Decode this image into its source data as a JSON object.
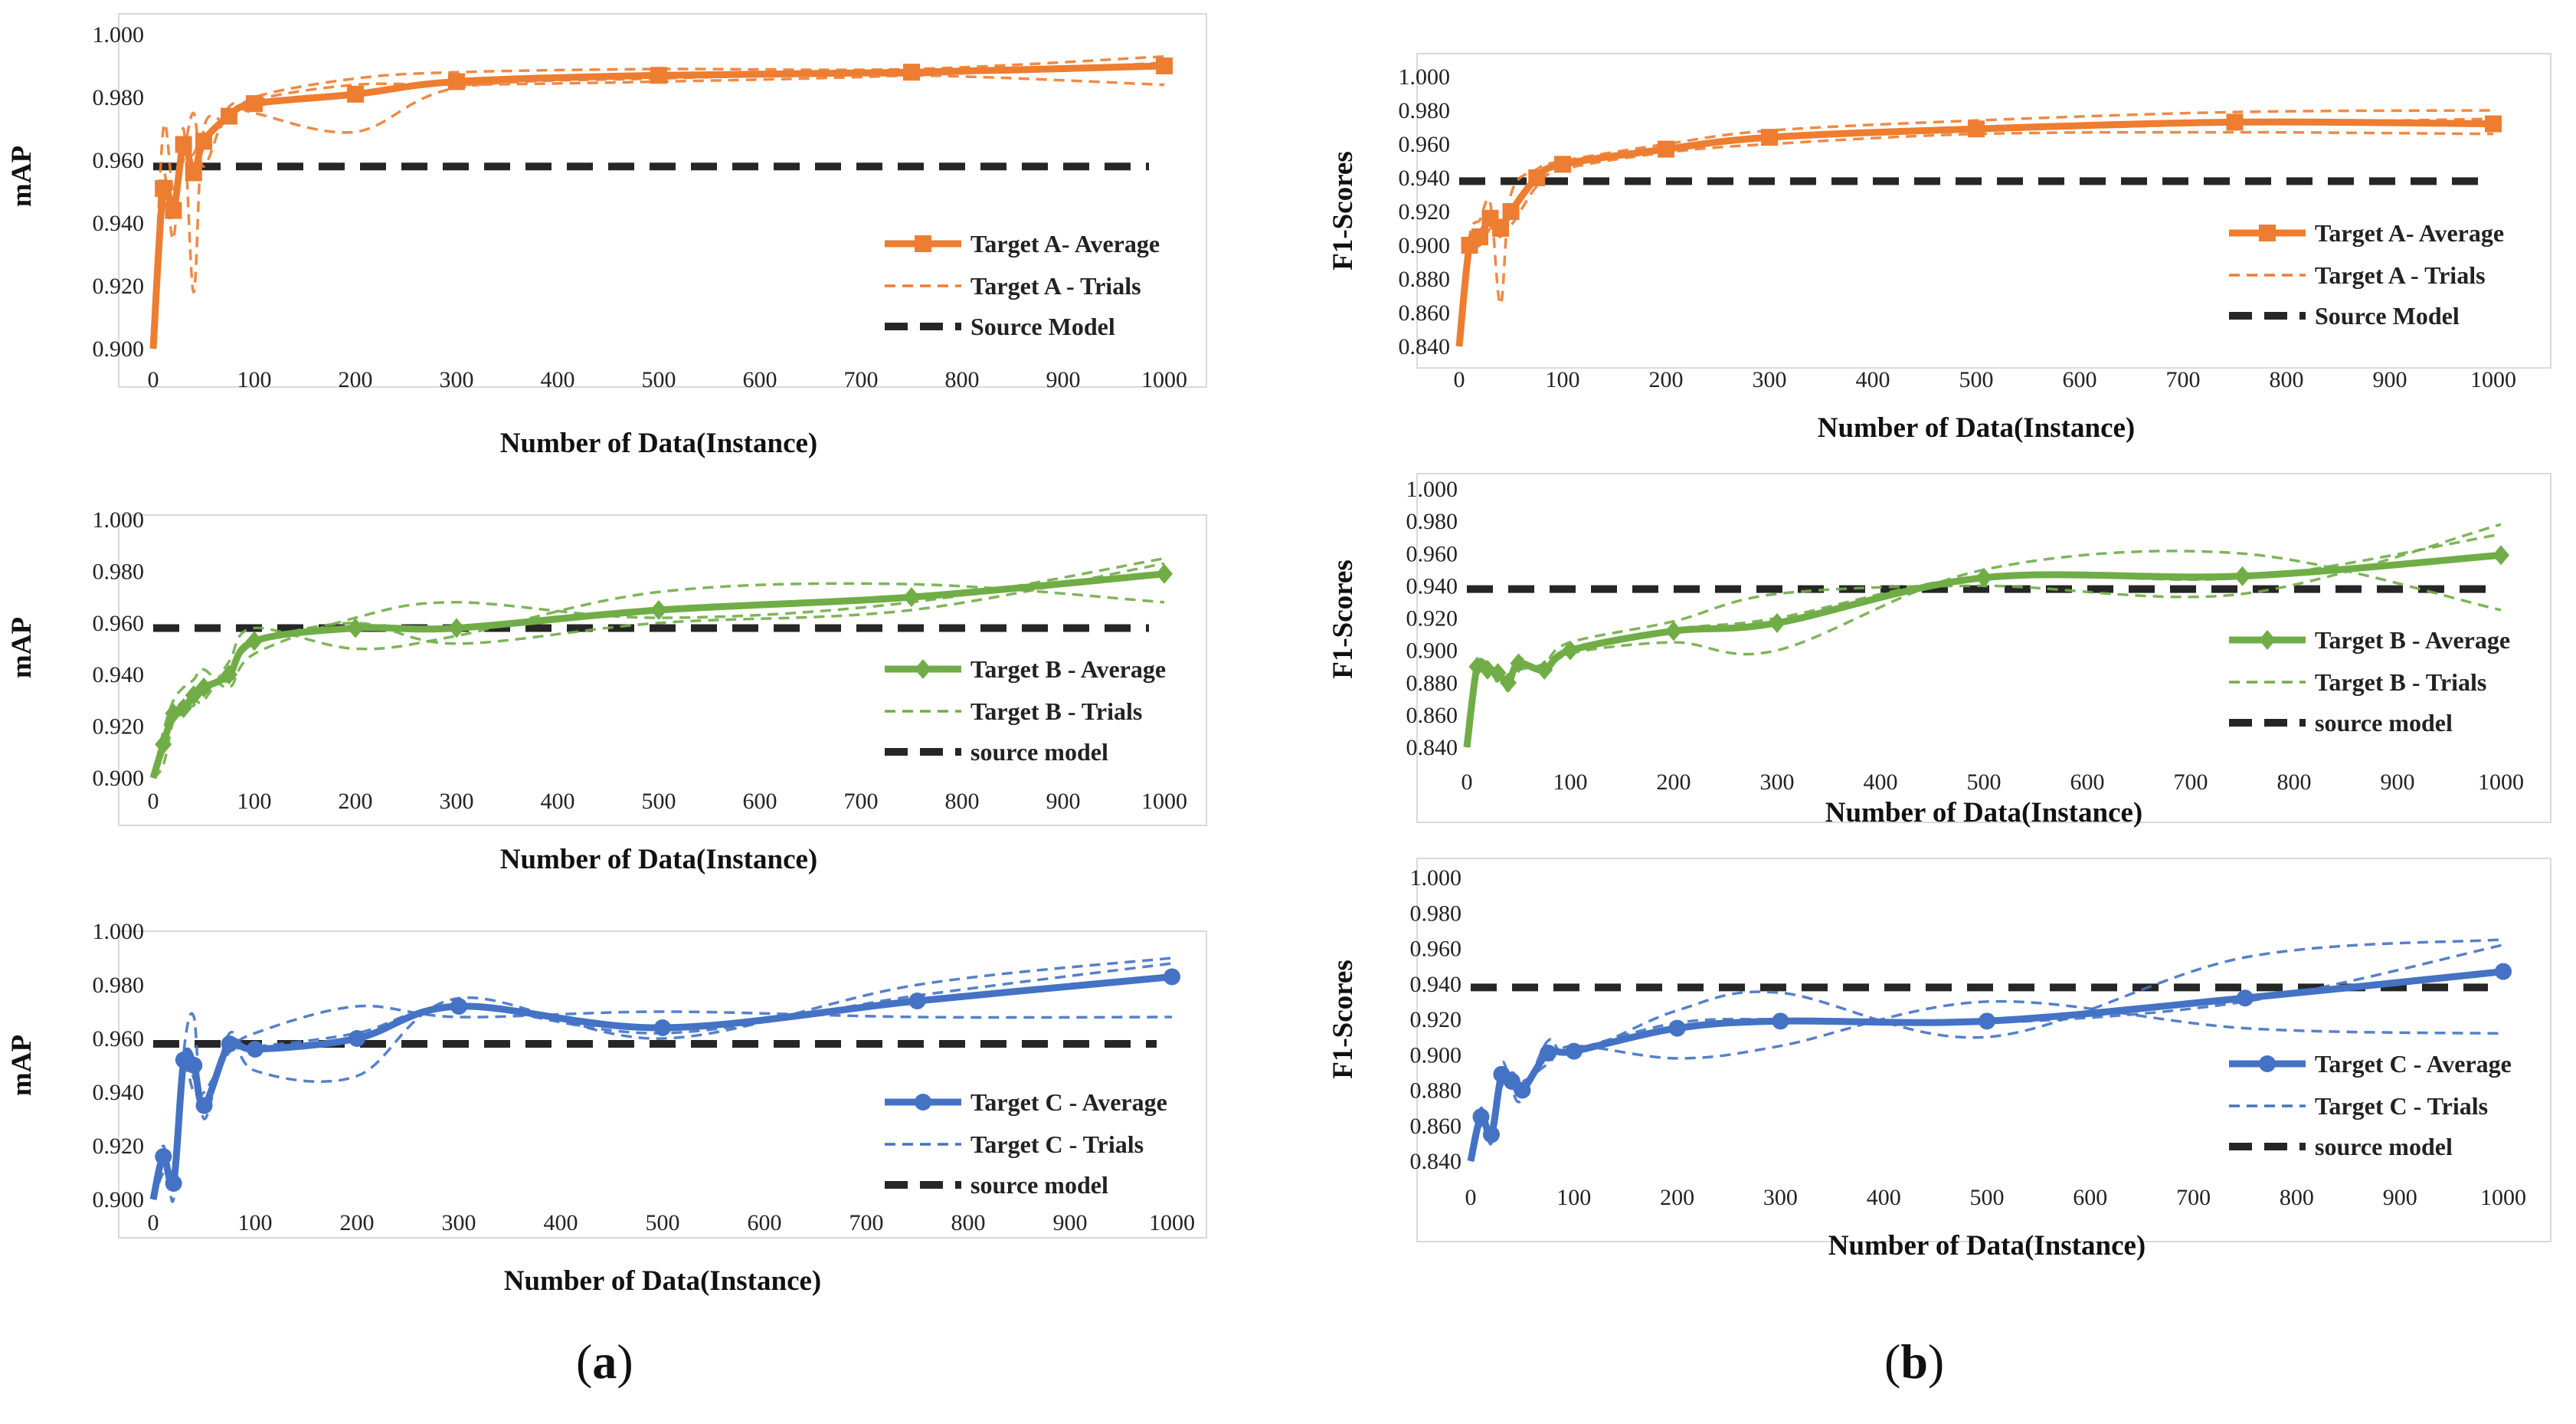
{
  "panel_labels": {
    "a": "a",
    "b": "b"
  },
  "colors": {
    "orange": "#ED7D31",
    "green": "#70AD47",
    "blue": "#4472C4",
    "source": "#262626"
  },
  "chart_data": [
    {
      "id": "a-top",
      "type": "line",
      "panel": "a",
      "ylabel": "mAP",
      "xlabel": "Number of Data(Instance)",
      "xlim": [
        0,
        1000
      ],
      "ylim": [
        0.9,
        1.0
      ],
      "xticks": [
        "0",
        "100",
        "200",
        "300",
        "400",
        "500",
        "600",
        "700",
        "800",
        "900",
        "1000"
      ],
      "yticks": [
        "0.900",
        "0.920",
        "0.940",
        "0.960",
        "0.980",
        "1.000"
      ],
      "color": "#ED7D31",
      "marker": "square",
      "source_value": 0.958,
      "legend": [
        "Target A- Average",
        "Target A - Trials",
        "Source Model"
      ],
      "average": {
        "x": [
          0,
          10,
          20,
          30,
          40,
          50,
          75,
          100,
          200,
          300,
          500,
          750,
          1000
        ],
        "y": [
          0.9,
          0.951,
          0.944,
          0.965,
          0.956,
          0.966,
          0.974,
          0.978,
          0.981,
          0.985,
          0.987,
          0.988,
          0.99
        ]
      },
      "trials": [
        {
          "x": [
            0,
            10,
            20,
            30,
            40,
            50,
            75,
            100,
            200,
            300,
            500,
            750,
            1000
          ],
          "y": [
            0.9,
            0.955,
            0.935,
            0.97,
            0.918,
            0.97,
            0.972,
            0.98,
            0.986,
            0.988,
            0.989,
            0.989,
            0.993
          ]
        },
        {
          "x": [
            0,
            10,
            20,
            30,
            40,
            50,
            75,
            100,
            200,
            300,
            500,
            750,
            1000
          ],
          "y": [
            0.9,
            0.97,
            0.95,
            0.962,
            0.975,
            0.958,
            0.977,
            0.975,
            0.969,
            0.983,
            0.986,
            0.987,
            0.984
          ]
        },
        {
          "x": [
            0,
            10,
            20,
            30,
            40,
            50,
            75,
            100,
            200,
            300,
            500,
            750,
            1000
          ],
          "y": [
            0.9,
            0.945,
            0.948,
            0.96,
            0.962,
            0.968,
            0.972,
            0.979,
            0.984,
            0.984,
            0.985,
            0.987,
            0.991
          ]
        }
      ]
    },
    {
      "id": "a-mid",
      "type": "line",
      "panel": "a",
      "ylabel": "mAP",
      "xlabel": "Number of Data(Instance)",
      "xlim": [
        0,
        1000
      ],
      "ylim": [
        0.9,
        1.0
      ],
      "xticks": [
        "0",
        "100",
        "200",
        "300",
        "400",
        "500",
        "600",
        "700",
        "800",
        "900",
        "1000"
      ],
      "yticks": [
        "0.900",
        "0.920",
        "0.940",
        "0.960",
        "0.980",
        "1.000"
      ],
      "color": "#70AD47",
      "marker": "diamond",
      "source_value": 0.958,
      "legend": [
        "Target B - Average",
        "Target B - Trials",
        "source model"
      ],
      "average": {
        "x": [
          0,
          10,
          20,
          30,
          40,
          50,
          75,
          100,
          200,
          300,
          500,
          750,
          1000
        ],
        "y": [
          0.9,
          0.913,
          0.925,
          0.927,
          0.932,
          0.935,
          0.94,
          0.953,
          0.958,
          0.958,
          0.965,
          0.97,
          0.979
        ]
      },
      "trials": [
        {
          "x": [
            0,
            10,
            20,
            30,
            40,
            50,
            75,
            100,
            200,
            300,
            500,
            750,
            1000
          ],
          "y": [
            0.9,
            0.918,
            0.93,
            0.935,
            0.938,
            0.942,
            0.935,
            0.948,
            0.962,
            0.968,
            0.962,
            0.968,
            0.985
          ]
        },
        {
          "x": [
            0,
            10,
            20,
            30,
            40,
            50,
            75,
            100,
            200,
            300,
            500,
            750,
            1000
          ],
          "y": [
            0.9,
            0.905,
            0.922,
            0.925,
            0.93,
            0.93,
            0.945,
            0.958,
            0.95,
            0.955,
            0.972,
            0.975,
            0.968
          ]
        },
        {
          "x": [
            0,
            10,
            20,
            30,
            40,
            50,
            75,
            100,
            200,
            300,
            500,
            750,
            1000
          ],
          "y": [
            0.9,
            0.915,
            0.924,
            0.93,
            0.928,
            0.936,
            0.938,
            0.952,
            0.96,
            0.952,
            0.96,
            0.965,
            0.983
          ]
        }
      ]
    },
    {
      "id": "a-bot",
      "type": "line",
      "panel": "a",
      "ylabel": "mAP",
      "xlabel": "Number of Data(Instance)",
      "xlim": [
        0,
        1000
      ],
      "ylim": [
        0.9,
        1.0
      ],
      "xticks": [
        "0",
        "100",
        "200",
        "300",
        "400",
        "500",
        "600",
        "700",
        "800",
        "900",
        "1000"
      ],
      "yticks": [
        "0.900",
        "0.920",
        "0.940",
        "0.960",
        "0.980",
        "1.000"
      ],
      "color": "#4472C4",
      "marker": "circle",
      "source_value": 0.958,
      "legend": [
        "Target C - Average",
        "Target C - Trials",
        "source model"
      ],
      "average": {
        "x": [
          0,
          10,
          20,
          30,
          40,
          50,
          75,
          100,
          200,
          300,
          500,
          750,
          1000
        ],
        "y": [
          0.9,
          0.916,
          0.906,
          0.952,
          0.95,
          0.935,
          0.958,
          0.956,
          0.96,
          0.972,
          0.964,
          0.974,
          0.983
        ]
      },
      "trials": [
        {
          "x": [
            0,
            10,
            20,
            30,
            40,
            50,
            75,
            100,
            200,
            300,
            500,
            750,
            1000
          ],
          "y": [
            0.9,
            0.92,
            0.9,
            0.955,
            0.968,
            0.93,
            0.962,
            0.948,
            0.946,
            0.975,
            0.96,
            0.98,
            0.99
          ]
        },
        {
          "x": [
            0,
            10,
            20,
            30,
            40,
            50,
            75,
            100,
            200,
            300,
            500,
            750,
            1000
          ],
          "y": [
            0.9,
            0.91,
            0.912,
            0.948,
            0.94,
            0.94,
            0.955,
            0.962,
            0.972,
            0.968,
            0.97,
            0.968,
            0.968
          ]
        },
        {
          "x": [
            0,
            10,
            20,
            30,
            40,
            50,
            75,
            100,
            200,
            300,
            500,
            750,
            1000
          ],
          "y": [
            0.9,
            0.918,
            0.905,
            0.952,
            0.945,
            0.936,
            0.957,
            0.957,
            0.962,
            0.972,
            0.962,
            0.976,
            0.988
          ]
        }
      ]
    },
    {
      "id": "b-top",
      "type": "line",
      "panel": "b",
      "ylabel": "F1-Scores",
      "xlabel": "Number of Data(Instance)",
      "xlim": [
        0,
        1000
      ],
      "ylim": [
        0.84,
        1.0
      ],
      "xticks": [
        "0",
        "100",
        "200",
        "300",
        "400",
        "500",
        "600",
        "700",
        "800",
        "900",
        "1000"
      ],
      "yticks": [
        "0.840",
        "0.860",
        "0.880",
        "0.900",
        "0.920",
        "0.940",
        "0.960",
        "0.980",
        "1.000"
      ],
      "color": "#ED7D31",
      "marker": "square",
      "source_value": 0.938,
      "legend": [
        "Target A- Average",
        "Target A - Trials",
        "Source Model"
      ],
      "average": {
        "x": [
          0,
          10,
          20,
          30,
          40,
          50,
          75,
          100,
          200,
          300,
          500,
          750,
          1000
        ],
        "y": [
          0.84,
          0.9,
          0.905,
          0.916,
          0.91,
          0.92,
          0.94,
          0.948,
          0.957,
          0.964,
          0.969,
          0.973,
          0.972
        ]
      },
      "trials": [
        {
          "x": [
            0,
            10,
            20,
            30,
            40,
            50,
            75,
            100,
            200,
            300,
            500,
            750,
            1000
          ],
          "y": [
            0.84,
            0.905,
            0.915,
            0.925,
            0.865,
            0.93,
            0.945,
            0.95,
            0.96,
            0.968,
            0.974,
            0.979,
            0.98
          ]
        },
        {
          "x": [
            0,
            10,
            20,
            30,
            40,
            50,
            75,
            100,
            200,
            300,
            500,
            750,
            1000
          ],
          "y": [
            0.84,
            0.895,
            0.9,
            0.91,
            0.915,
            0.912,
            0.935,
            0.945,
            0.955,
            0.96,
            0.966,
            0.967,
            0.966
          ]
        },
        {
          "x": [
            0,
            10,
            20,
            30,
            40,
            50,
            75,
            100,
            200,
            300,
            500,
            750,
            1000
          ],
          "y": [
            0.84,
            0.902,
            0.908,
            0.918,
            0.905,
            0.922,
            0.94,
            0.948,
            0.956,
            0.964,
            0.968,
            0.972,
            0.975
          ]
        }
      ]
    },
    {
      "id": "b-mid",
      "type": "line",
      "panel": "b",
      "ylabel": "F1-Scores",
      "xlabel": "Number of Data(Instance)",
      "xlim": [
        0,
        1000
      ],
      "ylim": [
        0.84,
        1.0
      ],
      "xticks": [
        "0",
        "100",
        "200",
        "300",
        "400",
        "500",
        "600",
        "700",
        "800",
        "900",
        "1000"
      ],
      "yticks": [
        "0.840",
        "0.860",
        "0.880",
        "0.900",
        "0.920",
        "0.940",
        "0.960",
        "0.980",
        "1.000"
      ],
      "color": "#70AD47",
      "marker": "diamond",
      "source_value": 0.938,
      "legend": [
        "Target B - Average",
        "Target B - Trials",
        "source model"
      ],
      "average": {
        "x": [
          0,
          10,
          20,
          30,
          40,
          50,
          75,
          100,
          200,
          300,
          500,
          750,
          1000
        ],
        "y": [
          0.84,
          0.89,
          0.888,
          0.886,
          0.88,
          0.892,
          0.888,
          0.9,
          0.912,
          0.917,
          0.945,
          0.946,
          0.959
        ]
      },
      "trials": [
        {
          "x": [
            0,
            10,
            20,
            30,
            40,
            50,
            75,
            100,
            200,
            300,
            500,
            750,
            1000
          ],
          "y": [
            0.84,
            0.892,
            0.885,
            0.89,
            0.875,
            0.895,
            0.885,
            0.898,
            0.905,
            0.9,
            0.95,
            0.96,
            0.925
          ]
        },
        {
          "x": [
            0,
            10,
            20,
            30,
            40,
            50,
            75,
            100,
            200,
            300,
            500,
            750,
            1000
          ],
          "y": [
            0.84,
            0.888,
            0.892,
            0.88,
            0.885,
            0.888,
            0.892,
            0.905,
            0.918,
            0.935,
            0.94,
            0.935,
            0.978
          ]
        },
        {
          "x": [
            0,
            10,
            20,
            30,
            40,
            50,
            75,
            100,
            200,
            300,
            500,
            750,
            1000
          ],
          "y": [
            0.84,
            0.89,
            0.887,
            0.888,
            0.878,
            0.893,
            0.886,
            0.899,
            0.913,
            0.92,
            0.946,
            0.945,
            0.972
          ]
        }
      ]
    },
    {
      "id": "b-bot",
      "type": "line",
      "panel": "b",
      "ylabel": "F1-Scores",
      "xlabel": "Number of Data(Instance)",
      "xlim": [
        0,
        1000
      ],
      "ylim": [
        0.84,
        1.0
      ],
      "xticks": [
        "0",
        "100",
        "200",
        "300",
        "400",
        "500",
        "600",
        "700",
        "800",
        "900",
        "1000"
      ],
      "yticks": [
        "0.840",
        "0.860",
        "0.880",
        "0.900",
        "0.920",
        "0.940",
        "0.960",
        "0.980",
        "1.000"
      ],
      "color": "#4472C4",
      "marker": "circle",
      "source_value": 0.938,
      "legend": [
        "Target C - Average",
        "Target C - Trials",
        "source model"
      ],
      "average": {
        "x": [
          0,
          10,
          20,
          30,
          40,
          50,
          75,
          100,
          200,
          300,
          500,
          750,
          1000
        ],
        "y": [
          0.84,
          0.865,
          0.855,
          0.889,
          0.885,
          0.88,
          0.901,
          0.902,
          0.915,
          0.919,
          0.919,
          0.932,
          0.947
        ]
      },
      "trials": [
        {
          "x": [
            0,
            10,
            20,
            30,
            40,
            50,
            75,
            100,
            200,
            300,
            500,
            750,
            1000
          ],
          "y": [
            0.84,
            0.87,
            0.85,
            0.895,
            0.88,
            0.875,
            0.908,
            0.9,
            0.925,
            0.935,
            0.91,
            0.955,
            0.965
          ]
        },
        {
          "x": [
            0,
            10,
            20,
            30,
            40,
            50,
            75,
            100,
            200,
            300,
            500,
            750,
            1000
          ],
          "y": [
            0.84,
            0.86,
            0.86,
            0.882,
            0.89,
            0.885,
            0.895,
            0.905,
            0.898,
            0.905,
            0.93,
            0.915,
            0.912
          ]
        },
        {
          "x": [
            0,
            10,
            20,
            30,
            40,
            50,
            75,
            100,
            200,
            300,
            500,
            750,
            1000
          ],
          "y": [
            0.84,
            0.866,
            0.856,
            0.89,
            0.884,
            0.882,
            0.902,
            0.903,
            0.918,
            0.92,
            0.918,
            0.93,
            0.962
          ]
        }
      ]
    }
  ]
}
